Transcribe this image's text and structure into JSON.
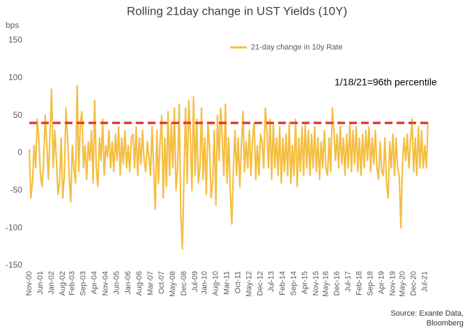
{
  "chart_data": {
    "type": "line",
    "title": "Rolling 21day change in UST Yields (10Y)",
    "ylabel": "bps",
    "annotation": "1/18/21=96th percentile",
    "source": [
      "Source: Exante Data,",
      "Bloomberg"
    ],
    "ylim": [
      -150,
      150
    ],
    "yticks": [
      150,
      100,
      50,
      0,
      -50,
      -100,
      -150
    ],
    "grid": false,
    "legend": "top",
    "reference_line": {
      "value": 40,
      "color": "#e03c31"
    },
    "categories": [
      "Nov-00",
      null,
      null,
      null,
      null,
      null,
      null,
      "Jun-01",
      null,
      null,
      null,
      null,
      null,
      null,
      "Jan-02",
      null,
      null,
      null,
      null,
      null,
      null,
      "Aug-02",
      null,
      null,
      null,
      null,
      null,
      "Feb-03",
      null,
      null,
      null,
      null,
      null,
      null,
      "Sep-03",
      null,
      null,
      null,
      null,
      null,
      null,
      "Apr-04",
      null,
      null,
      null,
      null,
      null,
      null,
      "Nov-04",
      null,
      null,
      null,
      null,
      null,
      null,
      "Jun-05",
      null,
      null,
      null,
      null,
      null,
      null,
      "Jan-06",
      null,
      null,
      null,
      null,
      null,
      null,
      "Aug-06",
      null,
      null,
      null,
      null,
      null,
      null,
      "Mar-07",
      null,
      null,
      null,
      null,
      null,
      null,
      "Oct-07",
      null,
      null,
      null,
      null,
      null,
      null,
      "May-08",
      null,
      null,
      null,
      null,
      null,
      null,
      "Dec-08",
      null,
      null,
      null,
      null,
      null,
      null,
      "Jul-09",
      null,
      null,
      null,
      null,
      null,
      "Jan-10",
      null,
      null,
      null,
      null,
      null,
      null,
      "Aug-10",
      null,
      null,
      null,
      null,
      null,
      null,
      "Mar-11",
      null,
      null,
      null,
      null,
      null,
      null,
      "Oct-11",
      null,
      null,
      null,
      null,
      null,
      null,
      "May-12",
      null,
      null,
      null,
      null,
      null,
      null,
      "Dec-12",
      null,
      null,
      null,
      null,
      null,
      null,
      "Jul-13",
      null,
      null,
      null,
      null,
      null,
      null,
      "Feb-14",
      null,
      null,
      null,
      null,
      null,
      null,
      "Sep-14",
      null,
      null,
      null,
      null,
      null,
      null,
      "Apr-15",
      null,
      null,
      null,
      null,
      null,
      null,
      "Nov-15",
      null,
      null,
      null,
      null,
      null,
      "May-16",
      null,
      null,
      null,
      null,
      null,
      null,
      "Dec-16",
      null,
      null,
      null,
      null,
      null,
      null,
      "Jul-17",
      null,
      null,
      null,
      null,
      null,
      null,
      "Feb-18",
      null,
      null,
      null,
      null,
      null,
      null,
      "Sep-18",
      null,
      null,
      null,
      null,
      null,
      null,
      "Apr-19",
      null,
      null,
      null,
      null,
      null,
      null,
      "Nov-19",
      null,
      null,
      null,
      null,
      null,
      "May-20",
      null,
      null,
      null,
      null,
      null,
      null,
      "Dec-20",
      null,
      null,
      null,
      null,
      null,
      null,
      "Jul-21",
      null,
      null
    ],
    "series": [
      {
        "name": "21-day change in 10y Rate",
        "color": "#f5be41",
        "values": [
          5,
          -60,
          -40,
          10,
          -20,
          45,
          20,
          -30,
          -45,
          -10,
          50,
          10,
          -35,
          25,
          85,
          -20,
          30,
          -10,
          -55,
          -40,
          20,
          -60,
          -30,
          60,
          20,
          -30,
          -65,
          10,
          -20,
          -40,
          90,
          -25,
          40,
          55,
          -20,
          10,
          -35,
          15,
          -10,
          30,
          -40,
          70,
          -20,
          -45,
          20,
          -10,
          45,
          -30,
          10,
          -5,
          30,
          -20,
          15,
          -25,
          25,
          -10,
          35,
          -30,
          20,
          -15,
          30,
          -20,
          10,
          -25,
          20,
          25,
          -20,
          35,
          -30,
          20,
          -15,
          30,
          -10,
          -25,
          15,
          -5,
          -30,
          35,
          -20,
          -75,
          30,
          -40,
          15,
          50,
          -60,
          20,
          -45,
          55,
          -30,
          40,
          -20,
          60,
          -50,
          -20,
          65,
          -80,
          -128,
          -30,
          60,
          -40,
          70,
          20,
          -50,
          75,
          -30,
          45,
          -40,
          -20,
          60,
          -35,
          20,
          -55,
          40,
          10,
          -60,
          -40,
          30,
          -70,
          50,
          -10,
          60,
          20,
          -30,
          65,
          -40,
          20,
          -50,
          -95,
          -20,
          30,
          -30,
          20,
          -45,
          10,
          55,
          -25,
          15,
          -20,
          30,
          -30,
          20,
          40,
          -35,
          10,
          -30,
          25,
          15,
          -20,
          60,
          30,
          -20,
          45,
          -35,
          40,
          -20,
          20,
          -30,
          35,
          -40,
          20,
          -25,
          25,
          -30,
          40,
          -40,
          10,
          -30,
          45,
          -45,
          20,
          -25,
          35,
          -30,
          40,
          -20,
          30,
          -30,
          25,
          -20,
          35,
          -25,
          20,
          -35,
          15,
          -20,
          30,
          -20,
          -30,
          20,
          -25,
          60,
          30,
          -10,
          25,
          -20,
          35,
          -15,
          20,
          -30,
          25,
          -20,
          40,
          -25,
          30,
          -15,
          35,
          -25,
          20,
          -30,
          25,
          -20,
          30,
          -10,
          35,
          -25,
          20,
          -15,
          30,
          -20,
          -35,
          15,
          -25,
          -30,
          20,
          -40,
          -60,
          15,
          -20,
          25,
          -30,
          20,
          -20,
          -30,
          -100,
          -15,
          20,
          -10,
          25,
          -20,
          15,
          45,
          -25,
          20,
          -30,
          35,
          -20,
          30,
          -20,
          10,
          -20,
          40
        ]
      }
    ]
  }
}
